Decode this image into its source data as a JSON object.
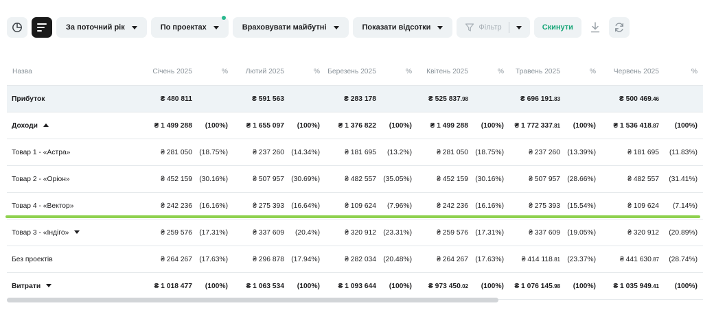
{
  "toolbar": {
    "period": "За поточний рік",
    "grouping": "По проектах",
    "future": "Враховувати майбутні",
    "percent": "Показати відсотки",
    "filter": "Фільтр",
    "reset": "Скинути",
    "colors": {
      "accent": "#19a678",
      "dot": "#2ab88e",
      "highlight": "#8fd14f"
    }
  },
  "table": {
    "headers": {
      "name": "Назва",
      "pct": "%",
      "months": [
        "Січень 2025",
        "Лютий 2025",
        "Березень 2025",
        "Квітень 2025",
        "Травень 2025",
        "Червень 2025"
      ]
    },
    "profit": {
      "label": "Прибуток",
      "values": [
        {
          "main": "₴ 480 811",
          "small": ""
        },
        {
          "main": "₴ 591 563",
          "small": ""
        },
        {
          "main": "₴ 283 178",
          "small": ""
        },
        {
          "main": "₴ 525 837",
          "small": ".98"
        },
        {
          "main": "₴ 696 191",
          "small": ".83"
        },
        {
          "main": "₴ 500 469",
          "small": ".46"
        }
      ]
    },
    "rows": [
      {
        "label": "Доходи",
        "type": "bold",
        "arrow": "up",
        "values": [
          {
            "main": "₴ 1 499 288",
            "small": "",
            "pct": "(100%)"
          },
          {
            "main": "₴ 1 655 097",
            "small": "",
            "pct": "(100%)"
          },
          {
            "main": "₴ 1 376 822",
            "small": "",
            "pct": "(100%)"
          },
          {
            "main": "₴ 1 499 288",
            "small": "",
            "pct": "(100%)"
          },
          {
            "main": "₴ 1 772 337",
            "small": ".81",
            "pct": "(100%)"
          },
          {
            "main": "₴ 1 536 418",
            "small": ".87",
            "pct": "(100%)"
          }
        ]
      },
      {
        "label": "Товар 1 - «Астра»",
        "type": "normal",
        "arrow": "",
        "values": [
          {
            "main": "₴ 281 050",
            "small": "",
            "pct": "(18.75%)"
          },
          {
            "main": "₴ 237 260",
            "small": "",
            "pct": "(14.34%)"
          },
          {
            "main": "₴ 181 695",
            "small": "",
            "pct": "(13.2%)"
          },
          {
            "main": "₴ 281 050",
            "small": "",
            "pct": "(18.75%)"
          },
          {
            "main": "₴ 237 260",
            "small": "",
            "pct": "(13.39%)"
          },
          {
            "main": "₴ 181 695",
            "small": "",
            "pct": "(11.83%)"
          }
        ]
      },
      {
        "label": "Товар 2 - «Оріон»",
        "type": "normal",
        "arrow": "",
        "values": [
          {
            "main": "₴ 452 159",
            "small": "",
            "pct": "(30.16%)"
          },
          {
            "main": "₴ 507 957",
            "small": "",
            "pct": "(30.69%)"
          },
          {
            "main": "₴ 482 557",
            "small": "",
            "pct": "(35.05%)"
          },
          {
            "main": "₴ 452 159",
            "small": "",
            "pct": "(30.16%)"
          },
          {
            "main": "₴ 507 957",
            "small": "",
            "pct": "(28.66%)"
          },
          {
            "main": "₴ 482 557",
            "small": "",
            "pct": "(31.41%)"
          }
        ]
      },
      {
        "label": "Товар 4 - «Вектор»",
        "type": "normal",
        "arrow": "",
        "values": [
          {
            "main": "₴ 242 236",
            "small": "",
            "pct": "(16.16%)"
          },
          {
            "main": "₴ 275 393",
            "small": "",
            "pct": "(16.64%)"
          },
          {
            "main": "₴ 109 624",
            "small": "",
            "pct": "(7.96%)"
          },
          {
            "main": "₴ 242 236",
            "small": "",
            "pct": "(16.16%)"
          },
          {
            "main": "₴ 275 393",
            "small": "",
            "pct": "(15.54%)"
          },
          {
            "main": "₴ 109 624",
            "small": "",
            "pct": "(7.14%)"
          }
        ]
      },
      {
        "label": "Товар 3 - «Індіго»",
        "type": "normal",
        "arrow": "down",
        "values": [
          {
            "main": "₴ 259 576",
            "small": "",
            "pct": "(17.31%)"
          },
          {
            "main": "₴ 337 609",
            "small": "",
            "pct": "(20.4%)"
          },
          {
            "main": "₴ 320 912",
            "small": "",
            "pct": "(23.31%)"
          },
          {
            "main": "₴ 259 576",
            "small": "",
            "pct": "(17.31%)"
          },
          {
            "main": "₴ 337 609",
            "small": "",
            "pct": "(19.05%)"
          },
          {
            "main": "₴ 320 912",
            "small": "",
            "pct": "(20.89%)"
          }
        ]
      },
      {
        "label": "Без проектів",
        "type": "normal",
        "arrow": "",
        "values": [
          {
            "main": "₴ 264 267",
            "small": "",
            "pct": "(17.63%)"
          },
          {
            "main": "₴ 296 878",
            "small": "",
            "pct": "(17.94%)"
          },
          {
            "main": "₴ 282 034",
            "small": "",
            "pct": "(20.48%)"
          },
          {
            "main": "₴ 264 267",
            "small": "",
            "pct": "(17.63%)"
          },
          {
            "main": "₴ 414 118",
            "small": ".81",
            "pct": "(23.37%)"
          },
          {
            "main": "₴ 441 630",
            "small": ".87",
            "pct": "(28.74%)"
          }
        ]
      },
      {
        "label": "Витрати",
        "type": "bold",
        "arrow": "down",
        "values": [
          {
            "main": "₴ 1 018 477",
            "small": "",
            "pct": "(100%)"
          },
          {
            "main": "₴ 1 063 534",
            "small": "",
            "pct": "(100%)"
          },
          {
            "main": "₴ 1 093 644",
            "small": "",
            "pct": "(100%)"
          },
          {
            "main": "₴ 973 450",
            "small": ".02",
            "pct": "(100%)"
          },
          {
            "main": "₴ 1 076 145",
            "small": ".98",
            "pct": "(100%)"
          },
          {
            "main": "₴ 1 035 949",
            "small": ".41",
            "pct": "(100%)"
          }
        ]
      }
    ]
  }
}
